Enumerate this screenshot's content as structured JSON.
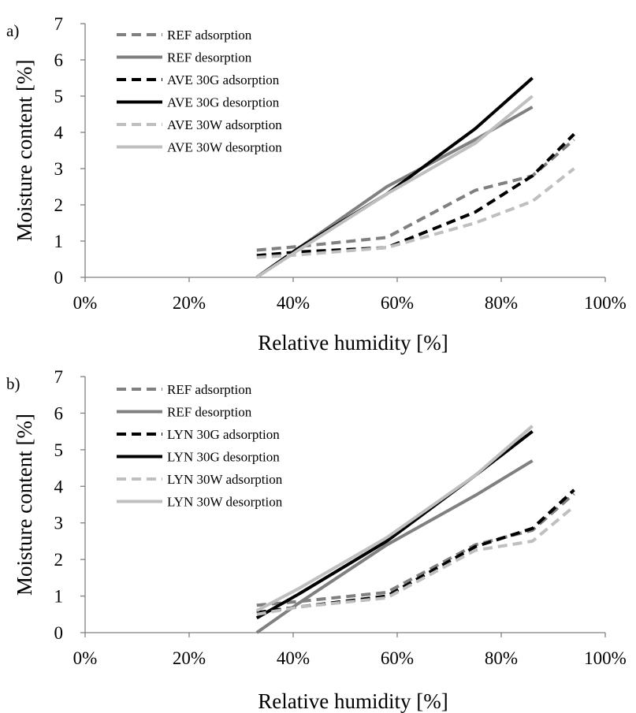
{
  "chart_data": [
    {
      "type": "line",
      "panel_label": "a)",
      "xlabel": "Relative humidity [%]",
      "ylabel": "Moisture content [%]",
      "xlim": [
        0,
        100
      ],
      "ylim": [
        0,
        7
      ],
      "x_tick_labels": [
        "0%",
        "20%",
        "40%",
        "60%",
        "80%",
        "100%"
      ],
      "y_tick_labels": [
        "0",
        "1",
        "2",
        "3",
        "4",
        "5",
        "6",
        "7"
      ],
      "grid": false,
      "legend_position": "top-left",
      "series": [
        {
          "name": "REF adsorption",
          "color": "#808080",
          "dash": true,
          "points": [
            [
              33,
              0.75
            ],
            [
              41,
              0.85
            ],
            [
              58,
              1.1
            ],
            [
              75,
              2.4
            ],
            [
              86,
              2.8
            ],
            [
              94,
              3.8
            ]
          ]
        },
        {
          "name": "REF desorption",
          "color": "#808080",
          "dash": false,
          "points": [
            [
              33,
              0.0
            ],
            [
              41,
              0.8
            ],
            [
              58,
              2.5
            ],
            [
              75,
              3.8
            ],
            [
              86,
              4.7
            ]
          ]
        },
        {
          "name": "AVE 30G adsorption",
          "color": "#000000",
          "dash": true,
          "points": [
            [
              33,
              0.6
            ],
            [
              41,
              0.7
            ],
            [
              58,
              0.82
            ],
            [
              75,
              1.8
            ],
            [
              86,
              2.8
            ],
            [
              94,
              3.95
            ]
          ]
        },
        {
          "name": "AVE 30G desorption",
          "color": "#000000",
          "dash": false,
          "points": [
            [
              33,
              0.0
            ],
            [
              41,
              0.8
            ],
            [
              58,
              2.3
            ],
            [
              75,
              4.1
            ],
            [
              86,
              5.5
            ]
          ]
        },
        {
          "name": "AVE 30W adsorption",
          "color": "#bfbfbf",
          "dash": true,
          "points": [
            [
              33,
              0.55
            ],
            [
              41,
              0.62
            ],
            [
              58,
              0.82
            ],
            [
              75,
              1.5
            ],
            [
              86,
              2.1
            ],
            [
              94,
              3.0
            ]
          ]
        },
        {
          "name": "AVE 30W desorption",
          "color": "#bfbfbf",
          "dash": false,
          "points": [
            [
              33,
              0.0
            ],
            [
              41,
              0.75
            ],
            [
              58,
              2.3
            ],
            [
              75,
              3.7
            ],
            [
              86,
              5.0
            ]
          ]
        }
      ]
    },
    {
      "type": "line",
      "panel_label": "b)",
      "xlabel": "Relative humidity [%]",
      "ylabel": "Moisture content [%]",
      "xlim": [
        0,
        100
      ],
      "ylim": [
        0,
        7
      ],
      "x_tick_labels": [
        "0%",
        "20%",
        "40%",
        "60%",
        "80%",
        "100%"
      ],
      "y_tick_labels": [
        "0",
        "1",
        "2",
        "3",
        "4",
        "5",
        "6",
        "7"
      ],
      "grid": false,
      "legend_position": "top-left",
      "series": [
        {
          "name": "REF adsorption",
          "color": "#808080",
          "dash": true,
          "points": [
            [
              33,
              0.75
            ],
            [
              41,
              0.85
            ],
            [
              58,
              1.1
            ],
            [
              75,
              2.4
            ],
            [
              86,
              2.8
            ],
            [
              94,
              3.8
            ]
          ]
        },
        {
          "name": "REF desorption",
          "color": "#808080",
          "dash": false,
          "points": [
            [
              33,
              0.0
            ],
            [
              41,
              0.8
            ],
            [
              58,
              2.4
            ],
            [
              75,
              3.75
            ],
            [
              86,
              4.7
            ]
          ]
        },
        {
          "name": "LYN 30G adsorption",
          "color": "#000000",
          "dash": true,
          "points": [
            [
              33,
              0.55
            ],
            [
              41,
              0.7
            ],
            [
              58,
              1.0
            ],
            [
              75,
              2.35
            ],
            [
              86,
              2.85
            ],
            [
              94,
              3.9
            ]
          ]
        },
        {
          "name": "LYN 30G desorption",
          "color": "#000000",
          "dash": false,
          "points": [
            [
              33,
              0.4
            ],
            [
              41,
              1.05
            ],
            [
              58,
              2.5
            ],
            [
              75,
              4.3
            ],
            [
              86,
              5.5
            ]
          ]
        },
        {
          "name": "LYN 30W adsorption",
          "color": "#bfbfbf",
          "dash": true,
          "points": [
            [
              33,
              0.5
            ],
            [
              41,
              0.7
            ],
            [
              58,
              0.95
            ],
            [
              75,
              2.25
            ],
            [
              86,
              2.5
            ],
            [
              94,
              3.45
            ]
          ]
        },
        {
          "name": "LYN 30W desorption",
          "color": "#bfbfbf",
          "dash": false,
          "points": [
            [
              33,
              0.6
            ],
            [
              41,
              1.2
            ],
            [
              58,
              2.6
            ],
            [
              75,
              4.3
            ],
            [
              86,
              5.65
            ]
          ]
        }
      ]
    }
  ]
}
